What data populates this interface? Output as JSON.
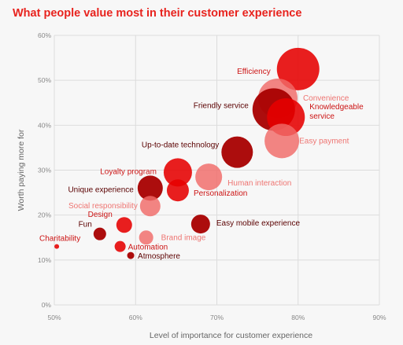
{
  "title": "What people value most in their customer experience",
  "colors": {
    "title": "#e8231e",
    "dark": "#a80000",
    "mid": "#e60000",
    "light": "#f06a68",
    "label_dark": "#5a0000",
    "label_mid": "#cc1414",
    "label_light": "#ee7572"
  },
  "chart_data": {
    "type": "scatter",
    "subtype": "bubble",
    "title": "What people value most in their customer experience",
    "xlabel": "Level of importance for customer experience",
    "ylabel": "Worth paying more for",
    "xlim": [
      50,
      90
    ],
    "ylim": [
      0,
      60
    ],
    "xticks": [
      "50%",
      "60%",
      "70%",
      "80%",
      "90%"
    ],
    "yticks": [
      "0%",
      "10%",
      "20%",
      "30%",
      "40%",
      "50%",
      "60%"
    ],
    "grid": true,
    "points": [
      {
        "label": "Efficiency",
        "x": 80,
        "y": 52.5,
        "size": 27,
        "tone": "mid"
      },
      {
        "label": "Convenience",
        "x": 77.5,
        "y": 46,
        "size": 25,
        "tone": "light"
      },
      {
        "label": "Friendly service",
        "x": 77,
        "y": 43.5,
        "size": 27,
        "tone": "dark"
      },
      {
        "label": "Knowledgeable service",
        "x": 78.5,
        "y": 41.8,
        "size": 24,
        "tone": "mid"
      },
      {
        "label": "Easy payment",
        "x": 78,
        "y": 36.5,
        "size": 22,
        "tone": "light"
      },
      {
        "label": "Up-to-date technology",
        "x": 72.5,
        "y": 34,
        "size": 20,
        "tone": "dark"
      },
      {
        "label": "Human interaction",
        "x": 69,
        "y": 28.5,
        "size": 17,
        "tone": "light"
      },
      {
        "label": "Loyalty program",
        "x": 65.2,
        "y": 29.5,
        "size": 18,
        "tone": "mid"
      },
      {
        "label": "Personalization",
        "x": 65.2,
        "y": 25.5,
        "size": 14,
        "tone": "mid"
      },
      {
        "label": "Unique experience",
        "x": 61.8,
        "y": 26,
        "size": 16,
        "tone": "dark"
      },
      {
        "label": "Social responsibility",
        "x": 61.8,
        "y": 22,
        "size": 13,
        "tone": "light"
      },
      {
        "label": "Easy mobile experience",
        "x": 68,
        "y": 18,
        "size": 12,
        "tone": "dark"
      },
      {
        "label": "Design",
        "x": 58.6,
        "y": 17.8,
        "size": 10,
        "tone": "mid"
      },
      {
        "label": "Fun",
        "x": 55.6,
        "y": 15.8,
        "size": 8,
        "tone": "dark"
      },
      {
        "label": "Brand image",
        "x": 61.3,
        "y": 15,
        "size": 9,
        "tone": "light"
      },
      {
        "label": "Automation",
        "x": 58.1,
        "y": 13,
        "size": 7,
        "tone": "mid"
      },
      {
        "label": "Atmosphere",
        "x": 59.4,
        "y": 11,
        "size": 4.5,
        "tone": "dark"
      },
      {
        "label": "Charitability",
        "x": 50.3,
        "y": 13,
        "size": 3,
        "tone": "mid"
      }
    ]
  }
}
